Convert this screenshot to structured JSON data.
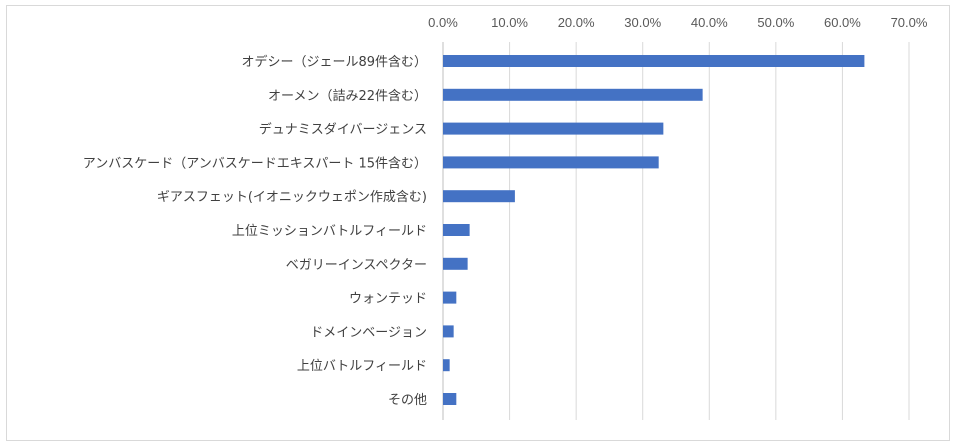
{
  "chart_data": {
    "type": "bar",
    "orientation": "horizontal",
    "title": "",
    "xlabel": "",
    "ylabel": "",
    "xlim": [
      0,
      70
    ],
    "x_ticks": [
      "0.0%",
      "10.0%",
      "20.0%",
      "30.0%",
      "40.0%",
      "50.0%",
      "60.0%",
      "70.0%"
    ],
    "x_tick_values": [
      0,
      10,
      20,
      30,
      40,
      50,
      60,
      70
    ],
    "axis_position": "top",
    "grid": true,
    "legend": "none",
    "bar_color": "#4472c4",
    "categories": [
      "オデシー（ジェール89件含む）",
      "オーメン（詰み22件含む）",
      "デュナミスダイバージェンス",
      "アンバスケード（アンバスケードエキスパート 15件含む）",
      "ギアスフェット(イオニックウェポン作成含む)",
      "上位ミッションバトルフィールド",
      "ベガリーインスペクター",
      "ウォンテッド",
      "ドメインベージョン",
      "上位バトルフィールド",
      "その他"
    ],
    "values": [
      63.3,
      39.0,
      33.1,
      32.4,
      10.8,
      4.0,
      3.7,
      2.0,
      1.6,
      1.0,
      2.0
    ]
  }
}
